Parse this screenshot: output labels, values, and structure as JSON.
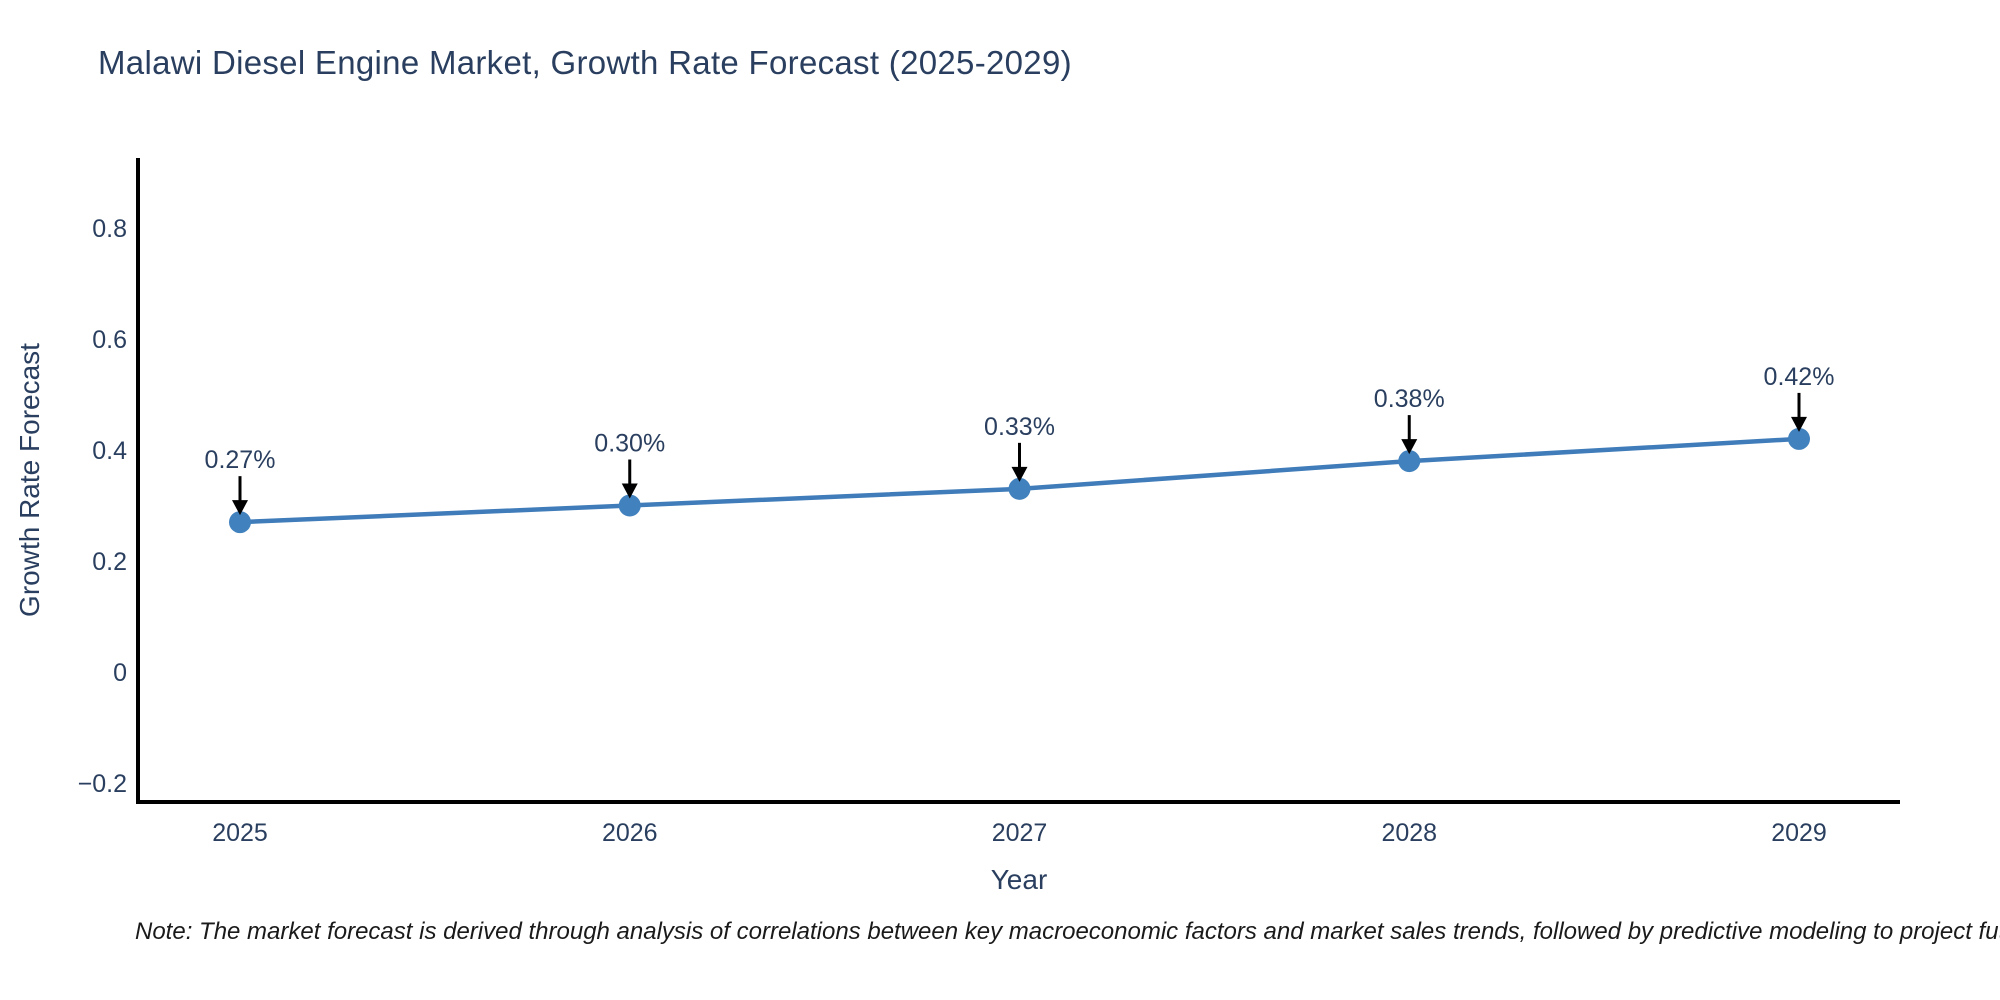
{
  "title": "Malawi Diesel Engine Market, Growth Rate Forecast (2025-2029)",
  "note": "Note: The market forecast is derived through analysis of correlations between key macroeconomic factors and market sales trends, followed by predictive modeling to project future sal",
  "chart_data": {
    "type": "line",
    "title": "Malawi Diesel Engine Market, Growth Rate Forecast (2025-2029)",
    "xlabel": "Year",
    "ylabel": "Growth Rate Forecast",
    "x": [
      2025,
      2026,
      2027,
      2028,
      2029
    ],
    "x_tick_labels": [
      "2025",
      "2026",
      "2027",
      "2028",
      "2029"
    ],
    "series": [
      {
        "name": "Growth Rate Forecast",
        "values": [
          0.27,
          0.3,
          0.33,
          0.38,
          0.42
        ]
      }
    ],
    "point_labels": [
      "0.27%",
      "0.30%",
      "0.33%",
      "0.38%",
      "0.42%"
    ],
    "y_ticks": [
      -0.2,
      0,
      0.2,
      0.4,
      0.6,
      0.8
    ],
    "y_tick_labels": [
      "−0.2",
      "0",
      "0.2",
      "0.4",
      "0.6",
      "0.8"
    ],
    "ylim": [
      -0.234,
      0.923
    ],
    "xlim": [
      2024.74,
      2029.27
    ],
    "grid": false,
    "legend": "none",
    "colors": {
      "line": "#3f7cb9",
      "marker": "#4181bd",
      "axis": "#000000",
      "text": "#2a3f5f",
      "annotation_arrow": "#000000",
      "note_text": "#1a1a1a",
      "background": "#ffffff"
    }
  }
}
